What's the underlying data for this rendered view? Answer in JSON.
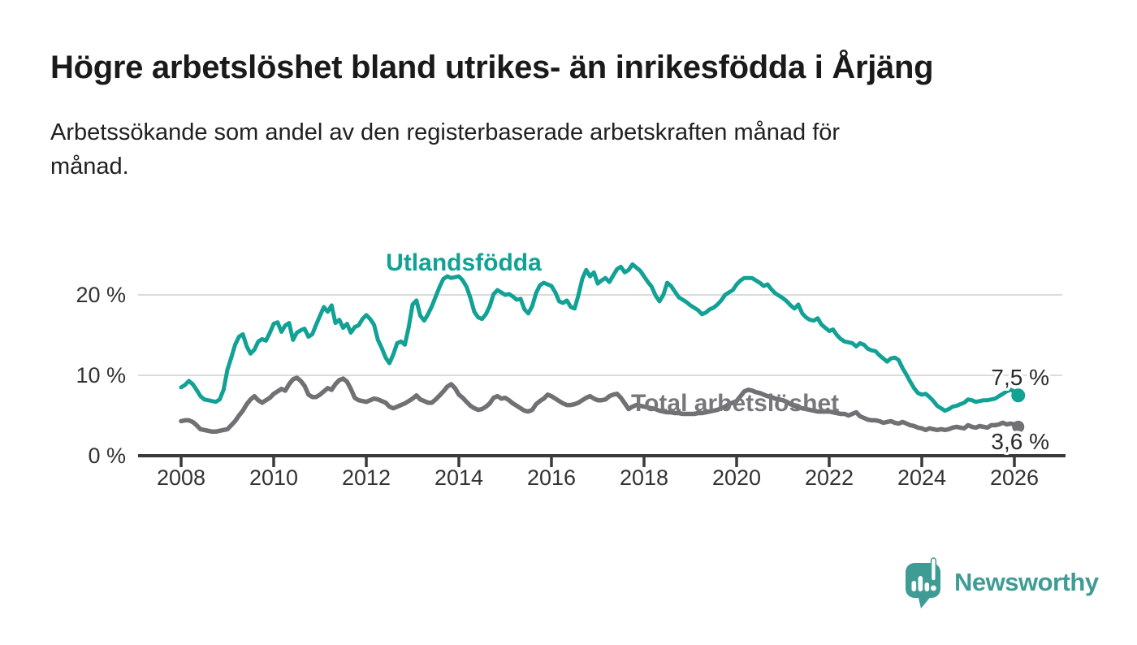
{
  "header": {
    "title": "Högre arbetslöshet bland utrikes- än inrikesfödda i Årjäng",
    "subtitle_lines": [
      "Arbetssökande som andel av den registerbaserade arbetskraften månad för",
      "månad."
    ]
  },
  "chart_data": {
    "type": "line",
    "title": "Högre arbetslöshet bland utrikes- än inrikesfödda i Årjäng",
    "xlabel": "",
    "ylabel": "Arbetssökande som andel av den registerbaserade arbetskraften",
    "y_unit": "%",
    "grid": "horizontal",
    "legend_position": "inline-labels",
    "x_start_year": 2008,
    "points_per_year": 12,
    "x_ticks": [
      "2008",
      "2010",
      "2012",
      "2014",
      "2016",
      "2018",
      "2020",
      "2022",
      "2024",
      "2026"
    ],
    "y_ticks": [
      {
        "value": 0,
        "label": "0 %"
      },
      {
        "value": 10,
        "label": "10 %"
      },
      {
        "value": 20,
        "label": "20 %"
      }
    ],
    "ylim": [
      0,
      26
    ],
    "xlim_years": [
      2007.1,
      2027.1
    ],
    "colors": {
      "grid": "#dbdbdb",
      "axis": "#3a3a3a",
      "tick_label": "#333333",
      "value_label": "#2a2a2a"
    },
    "series": [
      {
        "name": "Utlandsfödda",
        "color": "#12a195",
        "label_color": "#12a195",
        "end_label": "7,5 %",
        "end_value": 7.5,
        "values": [
          8.5,
          8.8,
          9.3,
          8.9,
          8.2,
          7.4,
          7.0,
          6.9,
          6.8,
          6.7,
          7.0,
          8.2,
          10.7,
          12.2,
          13.8,
          14.8,
          15.1,
          13.6,
          12.7,
          13.2,
          14.2,
          14.5,
          14.3,
          15.3,
          16.4,
          16.6,
          15.4,
          16.2,
          16.5,
          14.4,
          15.3,
          15.6,
          15.8,
          14.8,
          15.1,
          16.3,
          17.4,
          18.5,
          17.9,
          18.7,
          16.5,
          16.9,
          15.9,
          16.4,
          15.3,
          16.0,
          16.2,
          17.0,
          17.5,
          17.0,
          16.3,
          14.4,
          13.4,
          12.2,
          11.5,
          12.6,
          14.0,
          14.2,
          13.8,
          16.0,
          18.8,
          19.3,
          17.4,
          16.8,
          17.6,
          18.6,
          19.8,
          21.0,
          22.0,
          22.3,
          22.1,
          22.2,
          22.3,
          21.8,
          21.0,
          19.6,
          17.9,
          17.2,
          17.0,
          17.6,
          18.6,
          20.1,
          20.6,
          20.3,
          20.0,
          20.1,
          19.8,
          19.4,
          19.5,
          18.2,
          17.7,
          18.6,
          20.2,
          21.2,
          21.5,
          21.3,
          21.1,
          20.3,
          19.2,
          19.0,
          19.3,
          18.5,
          18.3,
          20.0,
          22.0,
          23.1,
          22.3,
          22.8,
          21.4,
          21.8,
          22.1,
          21.6,
          22.4,
          23.2,
          23.5,
          22.8,
          23.1,
          23.8,
          23.4,
          23.0,
          22.3,
          21.6,
          21.0,
          19.9,
          19.2,
          20.0,
          21.5,
          21.1,
          20.4,
          19.7,
          19.4,
          19.1,
          18.7,
          18.4,
          18.1,
          17.6,
          17.8,
          18.2,
          18.4,
          18.8,
          19.3,
          20.0,
          20.3,
          20.6,
          21.3,
          21.8,
          22.1,
          22.1,
          22.1,
          21.8,
          21.5,
          21.1,
          21.3,
          20.7,
          20.2,
          19.9,
          19.6,
          19.2,
          18.7,
          18.3,
          18.8,
          17.7,
          17.2,
          16.9,
          16.8,
          17.1,
          16.3,
          15.9,
          15.5,
          15.7,
          15.0,
          14.5,
          14.2,
          14.1,
          14.0,
          13.6,
          14.0,
          13.8,
          13.3,
          13.1,
          13.0,
          12.5,
          12.1,
          11.7,
          12.1,
          12.2,
          11.9,
          10.9,
          10.1,
          9.2,
          8.4,
          7.8,
          7.6,
          7.7,
          7.3,
          6.8,
          6.2,
          5.9,
          5.6,
          5.8,
          6.1,
          6.2,
          6.4,
          6.6,
          7.0,
          6.9,
          6.7,
          6.8,
          6.9,
          6.9,
          7.0,
          7.1,
          7.4,
          7.7,
          8.0,
          8.2,
          8.0,
          7.5
        ]
      },
      {
        "name": "Total arbetslöshet",
        "color": "#717175",
        "label_color": "#77777b",
        "end_label": "3,6 %",
        "end_value": 3.6,
        "values": [
          4.3,
          4.4,
          4.4,
          4.2,
          3.8,
          3.3,
          3.2,
          3.1,
          3.0,
          3.0,
          3.1,
          3.2,
          3.3,
          3.8,
          4.3,
          5.0,
          5.6,
          6.4,
          7.0,
          7.4,
          6.9,
          6.6,
          6.9,
          7.2,
          7.7,
          8.0,
          8.3,
          8.1,
          8.9,
          9.5,
          9.7,
          9.3,
          8.7,
          7.6,
          7.3,
          7.3,
          7.6,
          8.0,
          8.4,
          8.2,
          8.9,
          9.4,
          9.6,
          9.2,
          8.3,
          7.2,
          6.9,
          6.8,
          6.7,
          6.9,
          7.1,
          7.0,
          6.8,
          6.6,
          6.1,
          5.9,
          6.1,
          6.3,
          6.5,
          6.8,
          7.1,
          7.5,
          7.0,
          6.8,
          6.6,
          6.6,
          7.0,
          7.5,
          8.0,
          8.6,
          8.9,
          8.4,
          7.6,
          7.2,
          6.7,
          6.2,
          5.9,
          5.7,
          5.8,
          6.1,
          6.5,
          7.2,
          7.4,
          7.1,
          7.2,
          6.9,
          6.5,
          6.2,
          5.9,
          5.6,
          5.5,
          5.7,
          6.4,
          6.8,
          7.1,
          7.6,
          7.4,
          7.1,
          6.8,
          6.5,
          6.3,
          6.3,
          6.4,
          6.6,
          6.9,
          7.2,
          7.4,
          7.1,
          6.9,
          6.9,
          7.0,
          7.4,
          7.6,
          7.7,
          7.2,
          6.5,
          5.8,
          6.1,
          6.3,
          6.2,
          6.1,
          6.0,
          5.9,
          5.8,
          5.6,
          5.5,
          5.4,
          5.4,
          5.3,
          5.3,
          5.2,
          5.2,
          5.2,
          5.2,
          5.3,
          5.3,
          5.4,
          5.5,
          5.6,
          5.7,
          5.9,
          6.1,
          6.4,
          6.6,
          6.8,
          7.4,
          8.0,
          8.2,
          8.1,
          7.9,
          7.8,
          7.6,
          7.4,
          7.3,
          7.1,
          7.0,
          6.9,
          6.7,
          6.4,
          6.2,
          6.0,
          5.9,
          5.8,
          5.7,
          5.6,
          5.5,
          5.5,
          5.5,
          5.5,
          5.4,
          5.3,
          5.2,
          5.2,
          5.0,
          5.2,
          5.4,
          4.9,
          4.7,
          4.5,
          4.4,
          4.4,
          4.3,
          4.1,
          4.2,
          4.3,
          4.1,
          4.0,
          4.2,
          4.0,
          3.8,
          3.7,
          3.5,
          3.4,
          3.2,
          3.4,
          3.3,
          3.2,
          3.3,
          3.2,
          3.3,
          3.5,
          3.6,
          3.5,
          3.4,
          3.8,
          3.6,
          3.5,
          3.7,
          3.6,
          3.5,
          3.8,
          3.8,
          3.9,
          4.1,
          3.9,
          4.0,
          3.9,
          3.6
        ]
      }
    ]
  },
  "footer": {
    "brand": "Newsworthy",
    "brand_color": "#3f9c95"
  }
}
